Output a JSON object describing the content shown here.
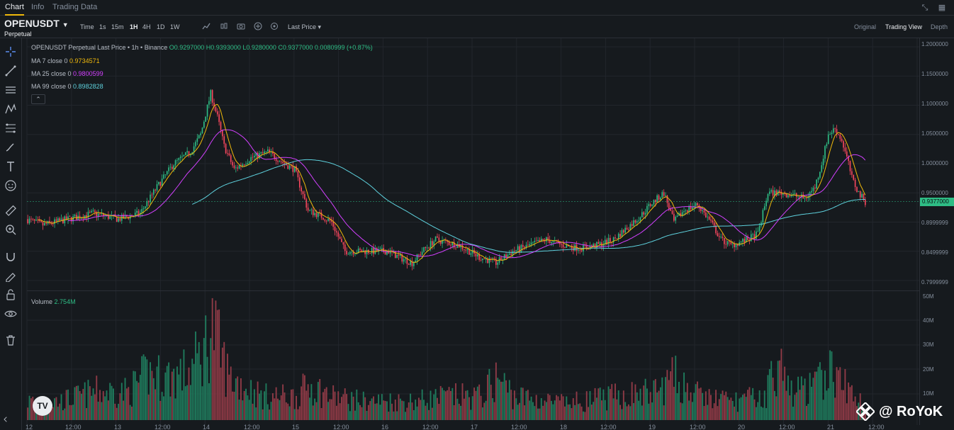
{
  "tabs": [
    {
      "label": "Chart"
    },
    {
      "label": "Info"
    },
    {
      "label": "Trading Data"
    }
  ],
  "header": {
    "symbol": "OPENUSDT",
    "sub": "Perpetual",
    "timeframes": [
      "Time",
      "1s",
      "15m",
      "1H",
      "4H",
      "1D",
      "1W"
    ],
    "active_timeframe": "1H",
    "price_type": "Last Price",
    "views": [
      "Original",
      "Trading View",
      "Depth"
    ],
    "active_view": "Trading View"
  },
  "legend": {
    "title": "OPENUSDT Perpetual Last Price • 1h • Binance",
    "ohlc": "O0.9297000 H0.9393000 L0.9280000 C0.9377000 0.0080999 (+0.87%)",
    "ma7_label": "MA 7 close 0",
    "ma7_value": "0.9734571",
    "ma25_label": "MA 25 close 0",
    "ma25_value": "0.9800599",
    "ma99_label": "MA 99 close 0",
    "ma99_value": "0.8982828",
    "volume_label": "Volume",
    "volume_value": "2.754M",
    "collapse_glyph": "⌃"
  },
  "colors": {
    "up": "#2ebd85",
    "down": "#f6465d",
    "ma7": "#f0b90b",
    "ma25": "#d340ff",
    "ma99": "#5ed1dd",
    "bg": "#161a1e"
  },
  "price_axis": [
    "1.2000000",
    "1.1500000",
    "1.1000000",
    "1.0500000",
    "1.0000000",
    "0.9500000",
    "0.8999999",
    "0.8499999",
    "0.7999999"
  ],
  "current_price": "0.9377000",
  "volume_axis": [
    "50M",
    "40M",
    "30M",
    "20M",
    "10M"
  ],
  "time_axis": [
    "12",
    "12:00",
    "13",
    "12:00",
    "14",
    "12:00",
    "15",
    "12:00",
    "16",
    "12:00",
    "17",
    "12:00",
    "18",
    "12:00",
    "19",
    "12:00",
    "20",
    "12:00",
    "21",
    "12:00"
  ],
  "watermark": "@ RoYoK",
  "tradingview_logo": "TV",
  "chart_data": {
    "type": "candlestick",
    "interval": "1h",
    "ylim": [
      0.795,
      1.205
    ],
    "keypoints": [
      [
        0,
        0.905
      ],
      [
        10,
        0.895
      ],
      [
        25,
        0.905
      ],
      [
        40,
        0.915
      ],
      [
        55,
        0.905
      ],
      [
        68,
        0.915
      ],
      [
        78,
        0.96
      ],
      [
        88,
        1.0
      ],
      [
        98,
        1.02
      ],
      [
        104,
        1.05
      ],
      [
        110,
        1.12
      ],
      [
        114,
        1.08
      ],
      [
        118,
        1.03
      ],
      [
        124,
        0.99
      ],
      [
        134,
        1.01
      ],
      [
        144,
        1.02
      ],
      [
        154,
        1.0
      ],
      [
        160,
        0.99
      ],
      [
        168,
        0.92
      ],
      [
        176,
        0.91
      ],
      [
        182,
        0.9
      ],
      [
        190,
        0.85
      ],
      [
        196,
        0.85
      ],
      [
        206,
        0.85
      ],
      [
        216,
        0.85
      ],
      [
        222,
        0.84
      ],
      [
        230,
        0.83
      ],
      [
        236,
        0.85
      ],
      [
        244,
        0.87
      ],
      [
        258,
        0.86
      ],
      [
        270,
        0.84
      ],
      [
        280,
        0.83
      ],
      [
        290,
        0.85
      ],
      [
        300,
        0.86
      ],
      [
        310,
        0.87
      ],
      [
        320,
        0.86
      ],
      [
        330,
        0.855
      ],
      [
        340,
        0.86
      ],
      [
        350,
        0.87
      ],
      [
        358,
        0.89
      ],
      [
        366,
        0.91
      ],
      [
        372,
        0.93
      ],
      [
        380,
        0.95
      ],
      [
        386,
        0.9
      ],
      [
        392,
        0.92
      ],
      [
        400,
        0.93
      ],
      [
        408,
        0.9
      ],
      [
        414,
        0.87
      ],
      [
        420,
        0.86
      ],
      [
        430,
        0.87
      ],
      [
        436,
        0.88
      ],
      [
        442,
        0.95
      ],
      [
        450,
        0.95
      ],
      [
        458,
        0.945
      ],
      [
        464,
        0.94
      ],
      [
        470,
        0.96
      ],
      [
        474,
        1.0
      ],
      [
        478,
        1.05
      ],
      [
        482,
        1.06
      ],
      [
        486,
        1.04
      ],
      [
        490,
        1.0
      ],
      [
        492,
        0.975
      ],
      [
        496,
        0.95
      ],
      [
        500,
        0.935
      ]
    ],
    "volume_keypoints": [
      [
        0,
        8
      ],
      [
        20,
        8
      ],
      [
        40,
        12
      ],
      [
        60,
        12
      ],
      [
        72,
        20
      ],
      [
        80,
        18
      ],
      [
        95,
        20
      ],
      [
        104,
        28
      ],
      [
        110,
        40
      ],
      [
        115,
        28
      ],
      [
        120,
        18
      ],
      [
        140,
        10
      ],
      [
        160,
        10
      ],
      [
        168,
        15
      ],
      [
        180,
        10
      ],
      [
        200,
        8
      ],
      [
        230,
        8
      ],
      [
        250,
        10
      ],
      [
        270,
        10
      ],
      [
        280,
        18
      ],
      [
        290,
        10
      ],
      [
        320,
        7
      ],
      [
        350,
        10
      ],
      [
        375,
        12
      ],
      [
        385,
        18
      ],
      [
        400,
        10
      ],
      [
        420,
        8
      ],
      [
        440,
        10
      ],
      [
        445,
        25
      ],
      [
        455,
        12
      ],
      [
        470,
        14
      ],
      [
        476,
        22
      ],
      [
        482,
        18
      ],
      [
        490,
        12
      ],
      [
        500,
        6
      ]
    ],
    "num_candles": 500
  }
}
